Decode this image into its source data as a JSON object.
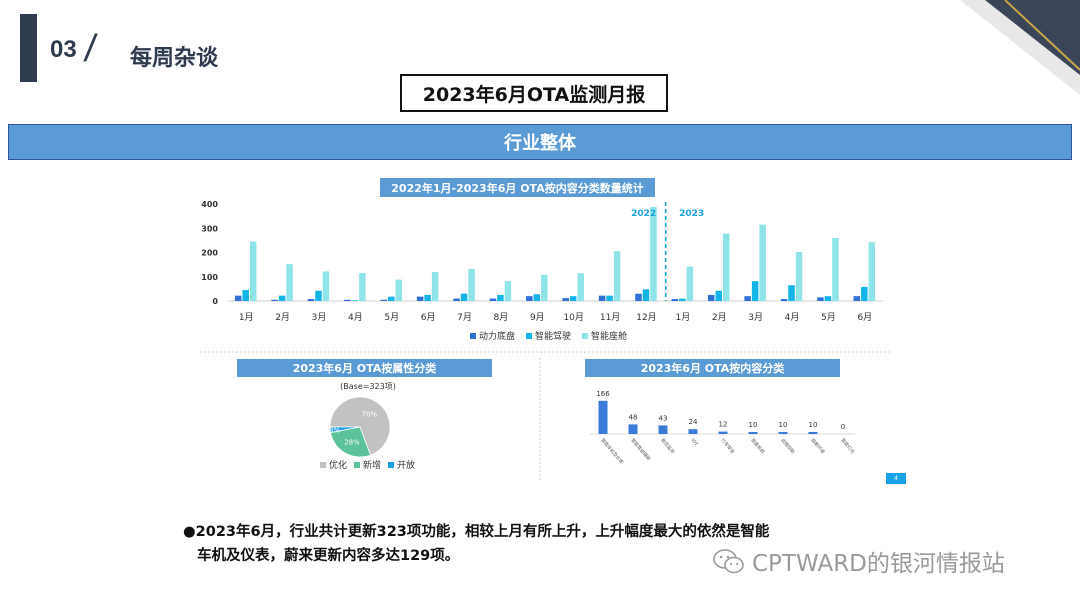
{
  "header": {
    "section_number": "03",
    "section_slash": "/",
    "section_title": "每周杂谈",
    "report_title": "2023年6月OTA监测月报",
    "banner": "行业整体"
  },
  "colors": {
    "powertrain": "#2f6fd6",
    "adas": "#13b5e8",
    "cockpit": "#8ee4e8",
    "pie_optimize": "#c2c2c2",
    "pie_new": "#5cc29a",
    "pie_open": "#1b9fe0",
    "bar_blue": "#3a7ad8"
  },
  "chart_data": [
    {
      "type": "bar",
      "title": "2022年1月-2023年6月 OTA按内容分类数量统计",
      "categories": [
        "1月",
        "2月",
        "3月",
        "4月",
        "5月",
        "6月",
        "7月",
        "8月",
        "9月",
        "10月",
        "11月",
        "12月",
        "1月",
        "2月",
        "3月",
        "4月",
        "5月",
        "6月"
      ],
      "period_labels": [
        "2022",
        "2023"
      ],
      "series": [
        {
          "name": "动力底盘",
          "values": [
            22,
            5,
            8,
            5,
            5,
            18,
            10,
            10,
            20,
            12,
            22,
            30,
            8,
            25,
            20,
            8,
            15,
            20
          ]
        },
        {
          "name": "智能驾驶",
          "values": [
            45,
            22,
            42,
            3,
            18,
            25,
            30,
            25,
            28,
            20,
            22,
            48,
            10,
            42,
            82,
            65,
            20,
            58
          ]
        },
        {
          "name": "智能座舱",
          "values": [
            245,
            152,
            122,
            115,
            88,
            120,
            132,
            82,
            108,
            115,
            205,
            388,
            142,
            278,
            315,
            202,
            260,
            242
          ]
        }
      ],
      "ylim": [
        0,
        400
      ],
      "yticks": [
        0,
        100,
        200,
        300,
        400
      ],
      "legend": "bottom",
      "grid": false
    },
    {
      "type": "pie",
      "title": "2023年6月 OTA按属性分类",
      "subtitle": "(Base=323项)",
      "categories": [
        "优化",
        "新增",
        "开放"
      ],
      "values": [
        70,
        28,
        3
      ],
      "value_labels": [
        "70%",
        "28%",
        "3%"
      ],
      "legend": "bottom"
    },
    {
      "type": "bar",
      "title": "2023年6月 OTA按内容分类",
      "categories": [
        "智能车机及仪表",
        "智能驾驶辅助",
        "胎压监测",
        "IOT",
        "行车安全",
        "底盘系统",
        "远程控制",
        "座舱环境",
        "智能灯光"
      ],
      "values": [
        166,
        48,
        43,
        24,
        12,
        10,
        10,
        10,
        0
      ],
      "ylim": [
        0,
        180
      ],
      "grid": false
    }
  ],
  "page_indicator": "4",
  "summary": {
    "bullet": "●",
    "line1": "2023年6月，行业共计更新323项功能，相较上月有所上升，上升幅度最大的依然是智能",
    "line2": "车机及仪表，蔚来更新内容多达129项。"
  },
  "watermark": "CPTWARD的银河情报站"
}
